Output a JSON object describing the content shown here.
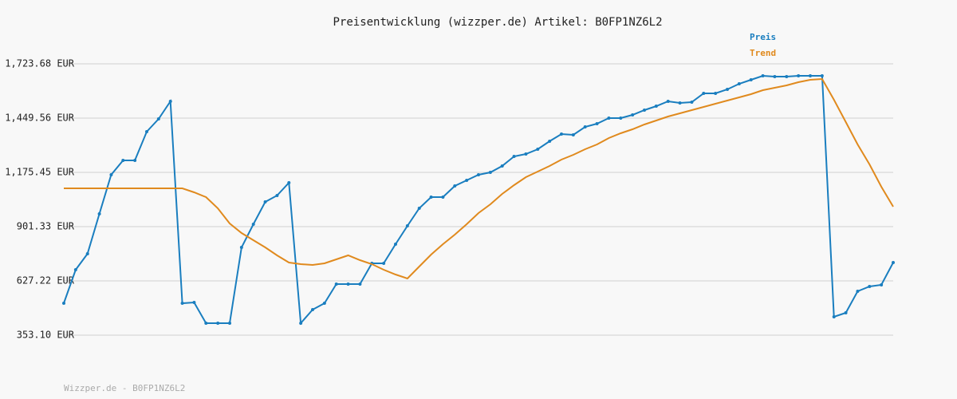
{
  "chart_data": {
    "type": "line",
    "title": "Preisentwicklung (wizzper.de) Artikel: B0FP1NZ6L2",
    "footer": "Wizzper.de - B0FP1NZ6L2",
    "ylim": [
      353.1,
      1723.68
    ],
    "yticks": [
      {
        "value": 353.1,
        "label": "353.10 EUR"
      },
      {
        "value": 627.22,
        "label": "627.22 EUR"
      },
      {
        "value": 901.33,
        "label": "901.33 EUR"
      },
      {
        "value": 1175.45,
        "label": "1,175.45 EUR"
      },
      {
        "value": 1449.56,
        "label": "1,449.56 EUR"
      },
      {
        "value": 1723.68,
        "label": "1,723.68 EUR"
      }
    ],
    "grid": true,
    "legend": "top-right",
    "series": [
      {
        "name": "Preis",
        "color": "#1a7ebf",
        "markers": true,
        "values": [
          514.3,
          683.6,
          764.3,
          965.8,
          1163.3,
          1235.9,
          1235.9,
          1381.0,
          1445.5,
          1534.2,
          514.3,
          518.4,
          413.6,
          413.6,
          413.6,
          796.5,
          913.4,
          1026.3,
          1058.5,
          1123.0,
          413.6,
          482.1,
          514.3,
          611.1,
          611.1,
          611.1,
          715.9,
          715.9,
          812.6,
          905.3,
          994.0,
          1050.5,
          1050.5,
          1106.9,
          1135.1,
          1163.3,
          1175.4,
          1207.7,
          1256.0,
          1268.1,
          1292.3,
          1332.6,
          1368.9,
          1364.9,
          1405.2,
          1421.3,
          1449.5,
          1449.5,
          1465.7,
          1489.8,
          1510.0,
          1534.2,
          1526.1,
          1530.2,
          1574.5,
          1574.5,
          1594.6,
          1622.9,
          1643.0,
          1663.2,
          1659.1,
          1659.1,
          1663.2,
          1663.2,
          1663.2,
          445.8,
          466.0,
          574.8,
          599.0,
          607.1,
          719.9
        ]
      },
      {
        "name": "Trend",
        "color": "#e08a1e",
        "markers": false,
        "values": [
          1094.8,
          1094.8,
          1094.8,
          1094.8,
          1094.8,
          1094.8,
          1094.8,
          1094.8,
          1094.8,
          1094.8,
          1094.8,
          1074.6,
          1050.5,
          994.0,
          917.4,
          869.1,
          832.8,
          796.5,
          756.2,
          719.9,
          711.9,
          707.8,
          715.9,
          736.0,
          756.2,
          732.0,
          711.9,
          683.6,
          659.5,
          639.3,
          699.8,
          760.2,
          812.6,
          861.0,
          913.4,
          969.9,
          1014.2,
          1066.6,
          1110.9,
          1151.2,
          1179.5,
          1207.7,
          1239.9,
          1264.1,
          1292.3,
          1316.5,
          1348.8,
          1372.9,
          1393.1,
          1417.3,
          1437.4,
          1457.6,
          1473.7,
          1489.8,
          1506.0,
          1522.1,
          1538.2,
          1554.3,
          1570.5,
          1590.6,
          1602.7,
          1614.8,
          1630.9,
          1643.0,
          1647.1,
          1542.2,
          1429.4,
          1316.5,
          1215.7,
          1102.9,
          1002.1
        ]
      }
    ]
  }
}
